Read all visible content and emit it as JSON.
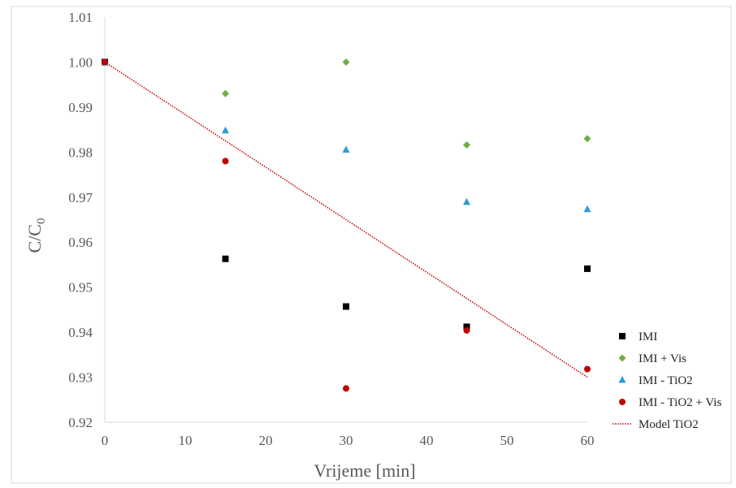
{
  "chart_data": {
    "type": "scatter",
    "title": "",
    "xlabel": "Vrijeme [min]",
    "ylabel_main": "C/C",
    "ylabel_sub": "0",
    "xlim": [
      0,
      60
    ],
    "ylim": [
      0.92,
      1.01
    ],
    "xticks": [
      "0",
      "10",
      "20",
      "30",
      "40",
      "50",
      "60"
    ],
    "yticks": [
      "0.92",
      "0.93",
      "0.94",
      "0.95",
      "0.96",
      "0.97",
      "0.98",
      "0.99",
      "1.00",
      "1.01"
    ],
    "grid": false,
    "legend_position": "right",
    "series": [
      {
        "name": "IMI",
        "marker": "square",
        "color": "#000000",
        "x": [
          0,
          15,
          30,
          45,
          60
        ],
        "y": [
          1.0,
          0.9563,
          0.9457,
          0.9412,
          0.9541
        ]
      },
      {
        "name": "IMI + Vis",
        "marker": "diamond",
        "color": "#70AD47",
        "x": [
          0,
          15,
          30,
          45,
          60
        ],
        "y": [
          1.0,
          0.993,
          1.0,
          0.9816,
          0.983
        ]
      },
      {
        "name": "IMI - TiO2",
        "marker": "triangle",
        "color": "#2E9BD6",
        "x": [
          0,
          15,
          30,
          45,
          60
        ],
        "y": [
          1.0,
          0.9848,
          0.9805,
          0.9689,
          0.9673
        ]
      },
      {
        "name": "IMI - TiO2 + Vis",
        "marker": "circle",
        "color": "#C00000",
        "x": [
          0,
          15,
          30,
          45,
          60
        ],
        "y": [
          1.0,
          0.978,
          0.9275,
          0.9404,
          0.9318
        ]
      }
    ],
    "trendline": {
      "name": "Model TiO2",
      "style": "dotted",
      "color": "#C00000",
      "x": [
        0,
        60
      ],
      "y": [
        1.0,
        0.93
      ]
    }
  }
}
